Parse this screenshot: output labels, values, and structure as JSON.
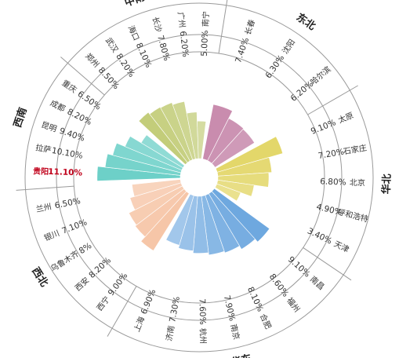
{
  "chart_data": {
    "type": "nightingale-rose",
    "unit": "%",
    "highlight": {
      "city": "贵阳",
      "color": "#c0001a"
    },
    "regions": [
      {
        "name": "东北",
        "color": "#c98cae",
        "cities": [
          {
            "city": "长春",
            "value": 7.4,
            "label": "7.40%"
          },
          {
            "city": "沈阳",
            "value": 6.3,
            "label": "6.30%"
          },
          {
            "city": "哈尔滨",
            "value": 6.2,
            "label": "6.20%"
          }
        ]
      },
      {
        "name": "华北",
        "color": "#e3d76a",
        "cities": [
          {
            "city": "太原",
            "value": 9.1,
            "label": "9.10%"
          },
          {
            "city": "石家庄",
            "value": 7.2,
            "label": "7.20%"
          },
          {
            "city": "北京",
            "value": 6.8,
            "label": "6.80%"
          },
          {
            "city": "呼和浩特",
            "value": 4.9,
            "label": "4.90%"
          },
          {
            "city": "天津",
            "value": 3.4,
            "label": "3.40%"
          }
        ]
      },
      {
        "name": "华东",
        "color": "#6ea8df",
        "cities": [
          {
            "city": "南昌",
            "value": 9.1,
            "label": "9.10%"
          },
          {
            "city": "福州",
            "value": 8.6,
            "label": "8.60%"
          },
          {
            "city": "合肥",
            "value": 8.1,
            "label": "8.10%"
          },
          {
            "city": "南京",
            "value": 7.9,
            "label": "7.90%"
          },
          {
            "city": "杭州",
            "value": 7.6,
            "label": "7.60%"
          },
          {
            "city": "济南",
            "value": 7.3,
            "label": "7.30%"
          },
          {
            "city": "上海",
            "value": 6.9,
            "label": "6.90%"
          }
        ]
      },
      {
        "name": "西北",
        "color": "#f6c6a8",
        "cities": [
          {
            "city": "西宁",
            "value": 9.0,
            "label": "9.00%"
          },
          {
            "city": "西安",
            "value": 8.2,
            "label": "8.20%"
          },
          {
            "city": "乌鲁木齐",
            "value": 8.0,
            "label": "8%"
          },
          {
            "city": "银川",
            "value": 7.1,
            "label": "7.10%"
          },
          {
            "city": "兰州",
            "value": 6.5,
            "label": "6.50%"
          }
        ]
      },
      {
        "name": "西南",
        "color": "#6dd0c8",
        "cities": [
          {
            "city": "贵阳",
            "value": 11.1,
            "label": "11.10%"
          },
          {
            "city": "拉萨",
            "value": 10.1,
            "label": "10.10%"
          },
          {
            "city": "昆明",
            "value": 9.4,
            "label": "9.40%"
          },
          {
            "city": "成都",
            "value": 8.2,
            "label": "8.20%"
          },
          {
            "city": "重庆",
            "value": 6.5,
            "label": "6.50%"
          }
        ]
      },
      {
        "name": "中南",
        "color": "#c3cd7a",
        "cities": [
          {
            "city": "郑州",
            "value": 8.5,
            "label": "8.50%"
          },
          {
            "city": "武汉",
            "value": 8.2,
            "label": "8.20%"
          },
          {
            "city": "海口",
            "value": 8.1,
            "label": "8.10%"
          },
          {
            "city": "长沙",
            "value": 7.8,
            "label": "7.80%"
          },
          {
            "city": "广州",
            "value": 6.2,
            "label": "6.20%"
          },
          {
            "city": "南宁",
            "value": 5.0,
            "label": "5.00%"
          }
        ]
      }
    ]
  }
}
